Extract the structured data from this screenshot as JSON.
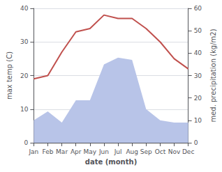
{
  "chart_data": {
    "type": "line",
    "categories": [
      "Jan",
      "Feb",
      "Mar",
      "Apr",
      "May",
      "Jun",
      "Jul",
      "Aug",
      "Sep",
      "Oct",
      "Nov",
      "Dec"
    ],
    "xlabel": "date (month)",
    "ylabel": "max temp (C)",
    "y2label": "med. precipitation (kg/m2)",
    "series": [
      {
        "type": "area",
        "axis": "y2",
        "color": "#b8c4e8",
        "values": [
          10,
          14,
          9,
          19,
          19,
          35,
          38,
          37,
          15,
          10,
          9,
          9
        ]
      },
      {
        "type": "line",
        "color": "#c0504d",
        "values": [
          19,
          20,
          27,
          33,
          34,
          38,
          37,
          37,
          34,
          30,
          25,
          22
        ]
      }
    ],
    "ylim": [
      0,
      40
    ],
    "yticks": [
      0,
      10,
      20,
      30,
      40
    ],
    "y2lim": [
      0,
      60
    ],
    "y2ticks": [
      0,
      10,
      20,
      30,
      40,
      50,
      60
    ],
    "grid": true
  }
}
